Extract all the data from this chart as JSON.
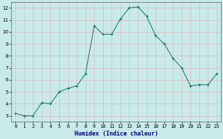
{
  "x": [
    0,
    1,
    2,
    3,
    4,
    5,
    6,
    7,
    8,
    9,
    10,
    11,
    12,
    13,
    14,
    15,
    16,
    17,
    18,
    19,
    20,
    21,
    22,
    23
  ],
  "y": [
    3.2,
    3.0,
    3.0,
    4.1,
    4.0,
    5.0,
    5.3,
    5.5,
    6.5,
    10.5,
    9.8,
    9.8,
    11.1,
    12.0,
    12.1,
    11.3,
    9.7,
    9.0,
    7.8,
    7.0,
    5.5,
    5.6,
    5.6,
    6.5
  ],
  "line_color": "#1a7a6e",
  "marker": "+",
  "marker_size": 3,
  "bg_color": "#c8eaea",
  "grid_color_minor": "#d8b8b8",
  "grid_color_major": "#d8b8b8",
  "xlabel": "Humidex (Indice chaleur)",
  "xlim": [
    -0.5,
    23.5
  ],
  "ylim": [
    2.5,
    12.5
  ],
  "yticks": [
    3,
    4,
    5,
    6,
    7,
    8,
    9,
    10,
    11,
    12
  ],
  "xticks": [
    0,
    1,
    2,
    3,
    4,
    5,
    6,
    7,
    8,
    9,
    10,
    11,
    12,
    13,
    14,
    15,
    16,
    17,
    18,
    19,
    20,
    21,
    22,
    23
  ],
  "tick_fontsize": 5,
  "xlabel_fontsize": 6,
  "spine_color": "#555555",
  "linewidth": 0.8,
  "marker_color": "#1a7a6e"
}
